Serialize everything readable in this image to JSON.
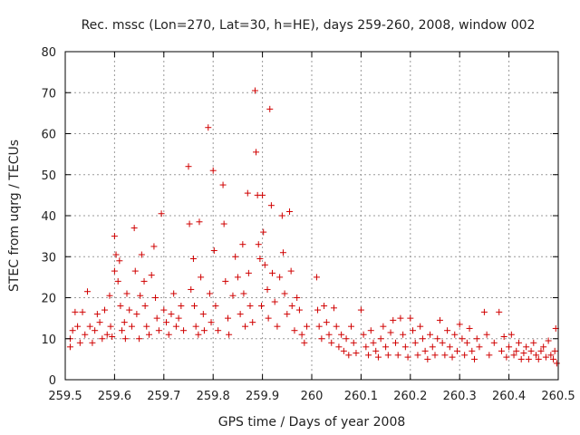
{
  "chart_data": {
    "type": "scatter",
    "title": "Rec. mssc (Lon=270, Lat=30, h=HE), days 259-260, 2008, window 002",
    "xlabel": "GPS time / Days of year 2008",
    "ylabel": "STEC from uqrg / TECUs",
    "xlim": [
      259.5,
      260.5
    ],
    "ylim": [
      0,
      80
    ],
    "grid": true,
    "marker": "plus",
    "marker_color": "#d00000",
    "x_ticks": [
      "259.5",
      "259.6",
      "259.7",
      "259.8",
      "259.9",
      "260",
      "260.1",
      "260.2",
      "260.3",
      "260.4",
      "260.5"
    ],
    "y_ticks": [
      "0",
      "10",
      "20",
      "30",
      "40",
      "50",
      "60",
      "70",
      "80"
    ],
    "series": [
      {
        "points": [
          [
            259.51,
            8
          ],
          [
            259.51,
            10
          ],
          [
            259.515,
            12
          ],
          [
            259.52,
            16.5
          ],
          [
            259.525,
            13
          ],
          [
            259.53,
            9
          ],
          [
            259.535,
            16.5
          ],
          [
            259.54,
            11
          ],
          [
            259.545,
            21.5
          ],
          [
            259.55,
            13
          ],
          [
            259.555,
            9
          ],
          [
            259.56,
            12
          ],
          [
            259.565,
            16
          ],
          [
            259.57,
            14
          ],
          [
            259.575,
            10
          ],
          [
            259.58,
            17
          ],
          [
            259.585,
            11
          ],
          [
            259.59,
            20.5
          ],
          [
            259.592,
            13
          ],
          [
            259.595,
            10.5
          ],
          [
            259.6,
            35
          ],
          [
            259.6,
            26.5
          ],
          [
            259.603,
            30.5
          ],
          [
            259.607,
            24
          ],
          [
            259.61,
            29
          ],
          [
            259.612,
            18
          ],
          [
            259.615,
            12
          ],
          [
            259.62,
            14
          ],
          [
            259.622,
            10
          ],
          [
            259.625,
            21
          ],
          [
            259.63,
            17
          ],
          [
            259.635,
            13
          ],
          [
            259.64,
            37
          ],
          [
            259.642,
            26.5
          ],
          [
            259.645,
            16
          ],
          [
            259.65,
            10
          ],
          [
            259.652,
            20.5
          ],
          [
            259.655,
            30.5
          ],
          [
            259.66,
            24
          ],
          [
            259.662,
            18
          ],
          [
            259.665,
            13
          ],
          [
            259.67,
            11
          ],
          [
            259.675,
            25.5
          ],
          [
            259.68,
            32.5
          ],
          [
            259.683,
            20
          ],
          [
            259.686,
            15
          ],
          [
            259.69,
            12
          ],
          [
            259.695,
            40.5
          ],
          [
            259.7,
            17
          ],
          [
            259.705,
            14
          ],
          [
            259.71,
            11
          ],
          [
            259.715,
            16
          ],
          [
            259.72,
            21
          ],
          [
            259.725,
            13
          ],
          [
            259.73,
            15
          ],
          [
            259.735,
            18
          ],
          [
            259.74,
            12
          ],
          [
            259.75,
            52
          ],
          [
            259.752,
            38
          ],
          [
            259.755,
            22
          ],
          [
            259.76,
            29.5
          ],
          [
            259.762,
            18
          ],
          [
            259.765,
            13
          ],
          [
            259.77,
            11
          ],
          [
            259.772,
            38.5
          ],
          [
            259.775,
            25
          ],
          [
            259.78,
            16
          ],
          [
            259.782,
            12
          ],
          [
            259.79,
            61.5
          ],
          [
            259.793,
            21
          ],
          [
            259.796,
            14
          ],
          [
            259.8,
            51
          ],
          [
            259.802,
            31.5
          ],
          [
            259.805,
            18
          ],
          [
            259.81,
            12
          ],
          [
            259.82,
            47.5
          ],
          [
            259.822,
            38
          ],
          [
            259.825,
            24
          ],
          [
            259.83,
            15
          ],
          [
            259.832,
            11
          ],
          [
            259.84,
            20.5
          ],
          [
            259.845,
            30
          ],
          [
            259.85,
            25
          ],
          [
            259.855,
            16
          ],
          [
            259.86,
            33
          ],
          [
            259.862,
            21
          ],
          [
            259.865,
            13
          ],
          [
            259.87,
            45.5
          ],
          [
            259.872,
            26
          ],
          [
            259.875,
            18
          ],
          [
            259.88,
            14
          ],
          [
            259.885,
            70.5
          ],
          [
            259.887,
            55.5
          ],
          [
            259.89,
            45
          ],
          [
            259.892,
            33
          ],
          [
            259.895,
            29.5
          ],
          [
            259.898,
            18
          ],
          [
            259.9,
            45
          ],
          [
            259.902,
            36
          ],
          [
            259.905,
            28
          ],
          [
            259.91,
            22
          ],
          [
            259.912,
            15
          ],
          [
            259.915,
            66
          ],
          [
            259.918,
            42.5
          ],
          [
            259.92,
            26
          ],
          [
            259.925,
            19
          ],
          [
            259.93,
            13
          ],
          [
            259.935,
            25
          ],
          [
            259.94,
            40
          ],
          [
            259.942,
            31
          ],
          [
            259.945,
            21
          ],
          [
            259.95,
            16
          ],
          [
            259.955,
            41
          ],
          [
            259.958,
            26.5
          ],
          [
            259.96,
            18
          ],
          [
            259.965,
            12
          ],
          [
            259.97,
            20
          ],
          [
            259.975,
            17
          ],
          [
            259.98,
            11
          ],
          [
            259.985,
            9
          ],
          [
            259.99,
            13
          ],
          [
            260.01,
            25
          ],
          [
            260.012,
            17
          ],
          [
            260.015,
            13
          ],
          [
            260.02,
            10
          ],
          [
            260.025,
            18
          ],
          [
            260.03,
            14
          ],
          [
            260.035,
            11
          ],
          [
            260.04,
            9
          ],
          [
            260.045,
            17.5
          ],
          [
            260.05,
            13
          ],
          [
            260.055,
            8
          ],
          [
            260.06,
            11
          ],
          [
            260.065,
            7
          ],
          [
            260.07,
            10
          ],
          [
            260.075,
            6
          ],
          [
            260.08,
            13
          ],
          [
            260.085,
            9
          ],
          [
            260.09,
            6.5
          ],
          [
            260.1,
            17
          ],
          [
            260.105,
            11
          ],
          [
            260.11,
            8
          ],
          [
            260.115,
            6
          ],
          [
            260.12,
            12
          ],
          [
            260.125,
            9
          ],
          [
            260.13,
            7
          ],
          [
            260.135,
            5.5
          ],
          [
            260.14,
            10
          ],
          [
            260.145,
            13
          ],
          [
            260.15,
            8
          ],
          [
            260.155,
            6
          ],
          [
            260.16,
            11.5
          ],
          [
            260.165,
            14.5
          ],
          [
            260.17,
            9
          ],
          [
            260.175,
            6
          ],
          [
            260.18,
            15
          ],
          [
            260.185,
            11
          ],
          [
            260.19,
            8
          ],
          [
            260.195,
            5.5
          ],
          [
            260.2,
            15
          ],
          [
            260.205,
            12
          ],
          [
            260.21,
            9
          ],
          [
            260.215,
            6
          ],
          [
            260.22,
            13
          ],
          [
            260.225,
            10
          ],
          [
            260.23,
            7
          ],
          [
            260.235,
            5
          ],
          [
            260.24,
            11
          ],
          [
            260.245,
            8
          ],
          [
            260.25,
            6
          ],
          [
            260.255,
            10
          ],
          [
            260.26,
            14.5
          ],
          [
            260.265,
            9
          ],
          [
            260.27,
            6
          ],
          [
            260.275,
            12
          ],
          [
            260.28,
            8
          ],
          [
            260.285,
            5.5
          ],
          [
            260.29,
            11
          ],
          [
            260.295,
            7
          ],
          [
            260.3,
            13.5
          ],
          [
            260.305,
            10
          ],
          [
            260.31,
            6
          ],
          [
            260.315,
            9
          ],
          [
            260.32,
            12.5
          ],
          [
            260.325,
            7
          ],
          [
            260.33,
            5
          ],
          [
            260.335,
            10
          ],
          [
            260.34,
            8
          ],
          [
            260.35,
            16.5
          ],
          [
            260.355,
            11
          ],
          [
            260.36,
            6
          ],
          [
            260.37,
            9
          ],
          [
            260.38,
            16.5
          ],
          [
            260.385,
            7
          ],
          [
            260.39,
            10.5
          ],
          [
            260.395,
            5.5
          ],
          [
            260.4,
            8
          ],
          [
            260.405,
            11
          ],
          [
            260.41,
            6
          ],
          [
            260.415,
            7
          ],
          [
            260.42,
            9
          ],
          [
            260.425,
            5
          ],
          [
            260.43,
            6.5
          ],
          [
            260.435,
            8
          ],
          [
            260.44,
            5
          ],
          [
            260.445,
            7
          ],
          [
            260.45,
            9
          ],
          [
            260.455,
            6
          ],
          [
            260.46,
            5
          ],
          [
            260.465,
            7
          ],
          [
            260.47,
            8
          ],
          [
            260.475,
            5.5
          ],
          [
            260.48,
            9.5
          ],
          [
            260.485,
            6
          ],
          [
            260.49,
            5
          ],
          [
            260.493,
            7
          ],
          [
            260.495,
            12.5
          ],
          [
            260.497,
            4
          ]
        ]
      }
    ]
  }
}
